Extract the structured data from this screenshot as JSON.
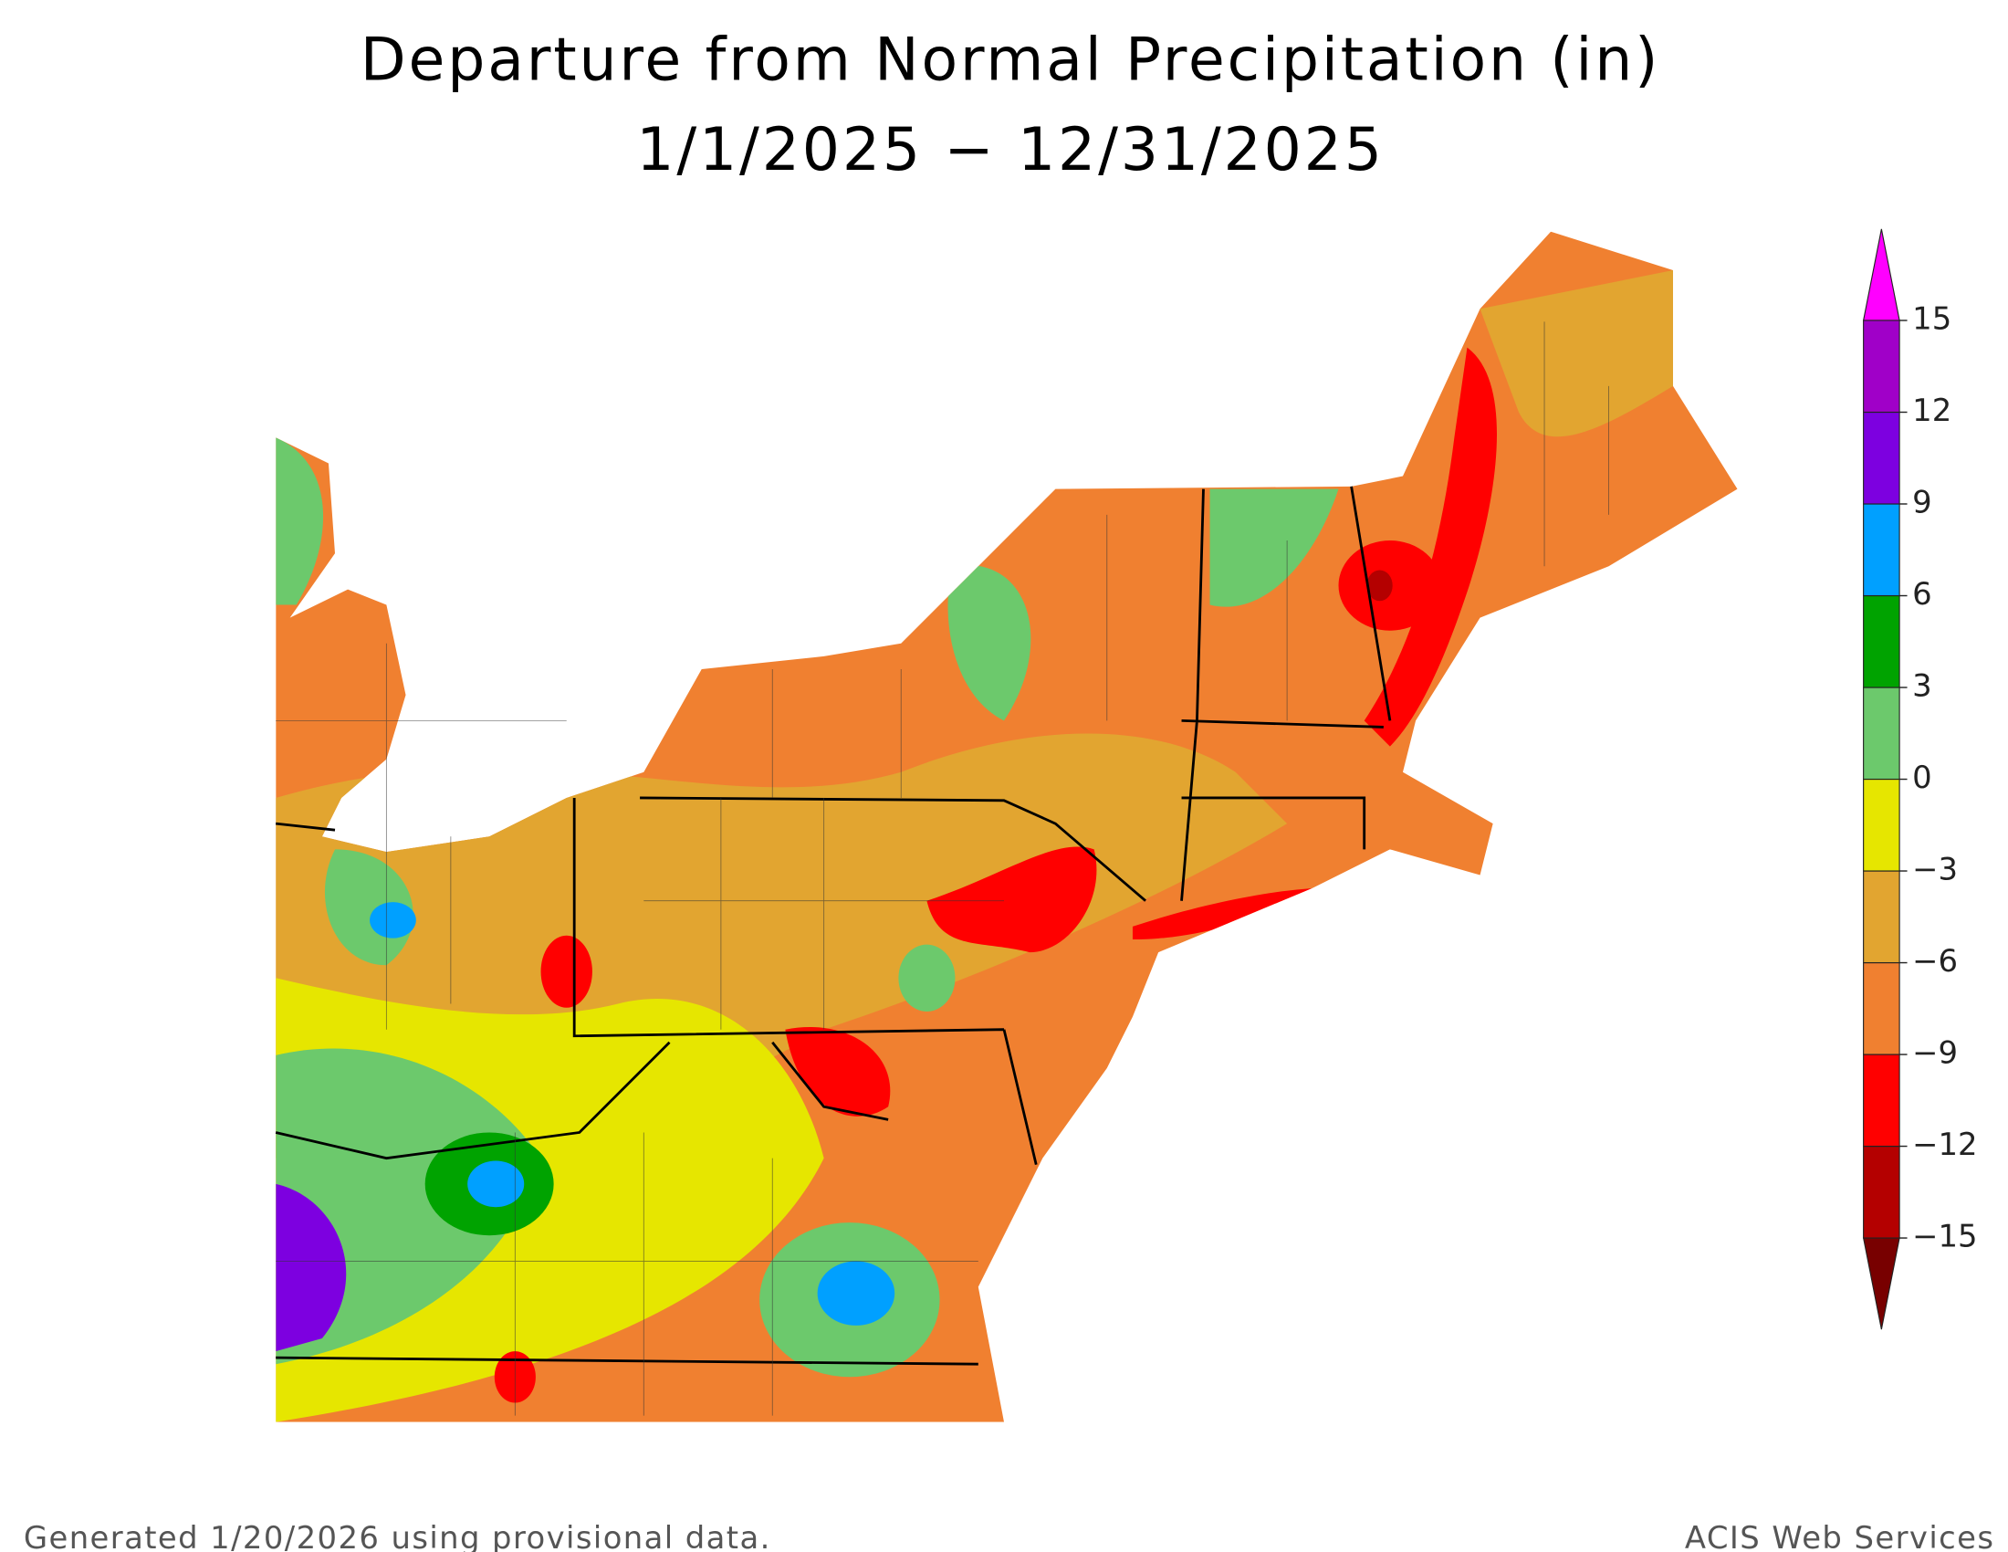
{
  "title": [
    "Departure from Normal Precipitation (in)",
    "1/1/2025 − 12/31/2025"
  ],
  "legend": {
    "ticks": [
      {
        "value": -15,
        "label": "−15"
      },
      {
        "value": -12,
        "label": "−12"
      },
      {
        "value": -9,
        "label": "−9"
      },
      {
        "value": -6,
        "label": "−6"
      },
      {
        "value": -3,
        "label": "−3"
      },
      0,
      3,
      6,
      9,
      12,
      15
    ],
    "colors": [
      "#b40000",
      "#ff0000",
      "#f08030",
      "#e2a530",
      "#e6e600",
      "#6cc96c",
      "#00a300",
      "#00a0ff",
      "#7d00e0",
      "#a000c8"
    ],
    "under_color": "#780000",
    "over_color": "#ff00ff"
  },
  "footer": {
    "left": "Generated 1/20/2026 using provisional data.",
    "right": "ACIS Web Services"
  }
}
